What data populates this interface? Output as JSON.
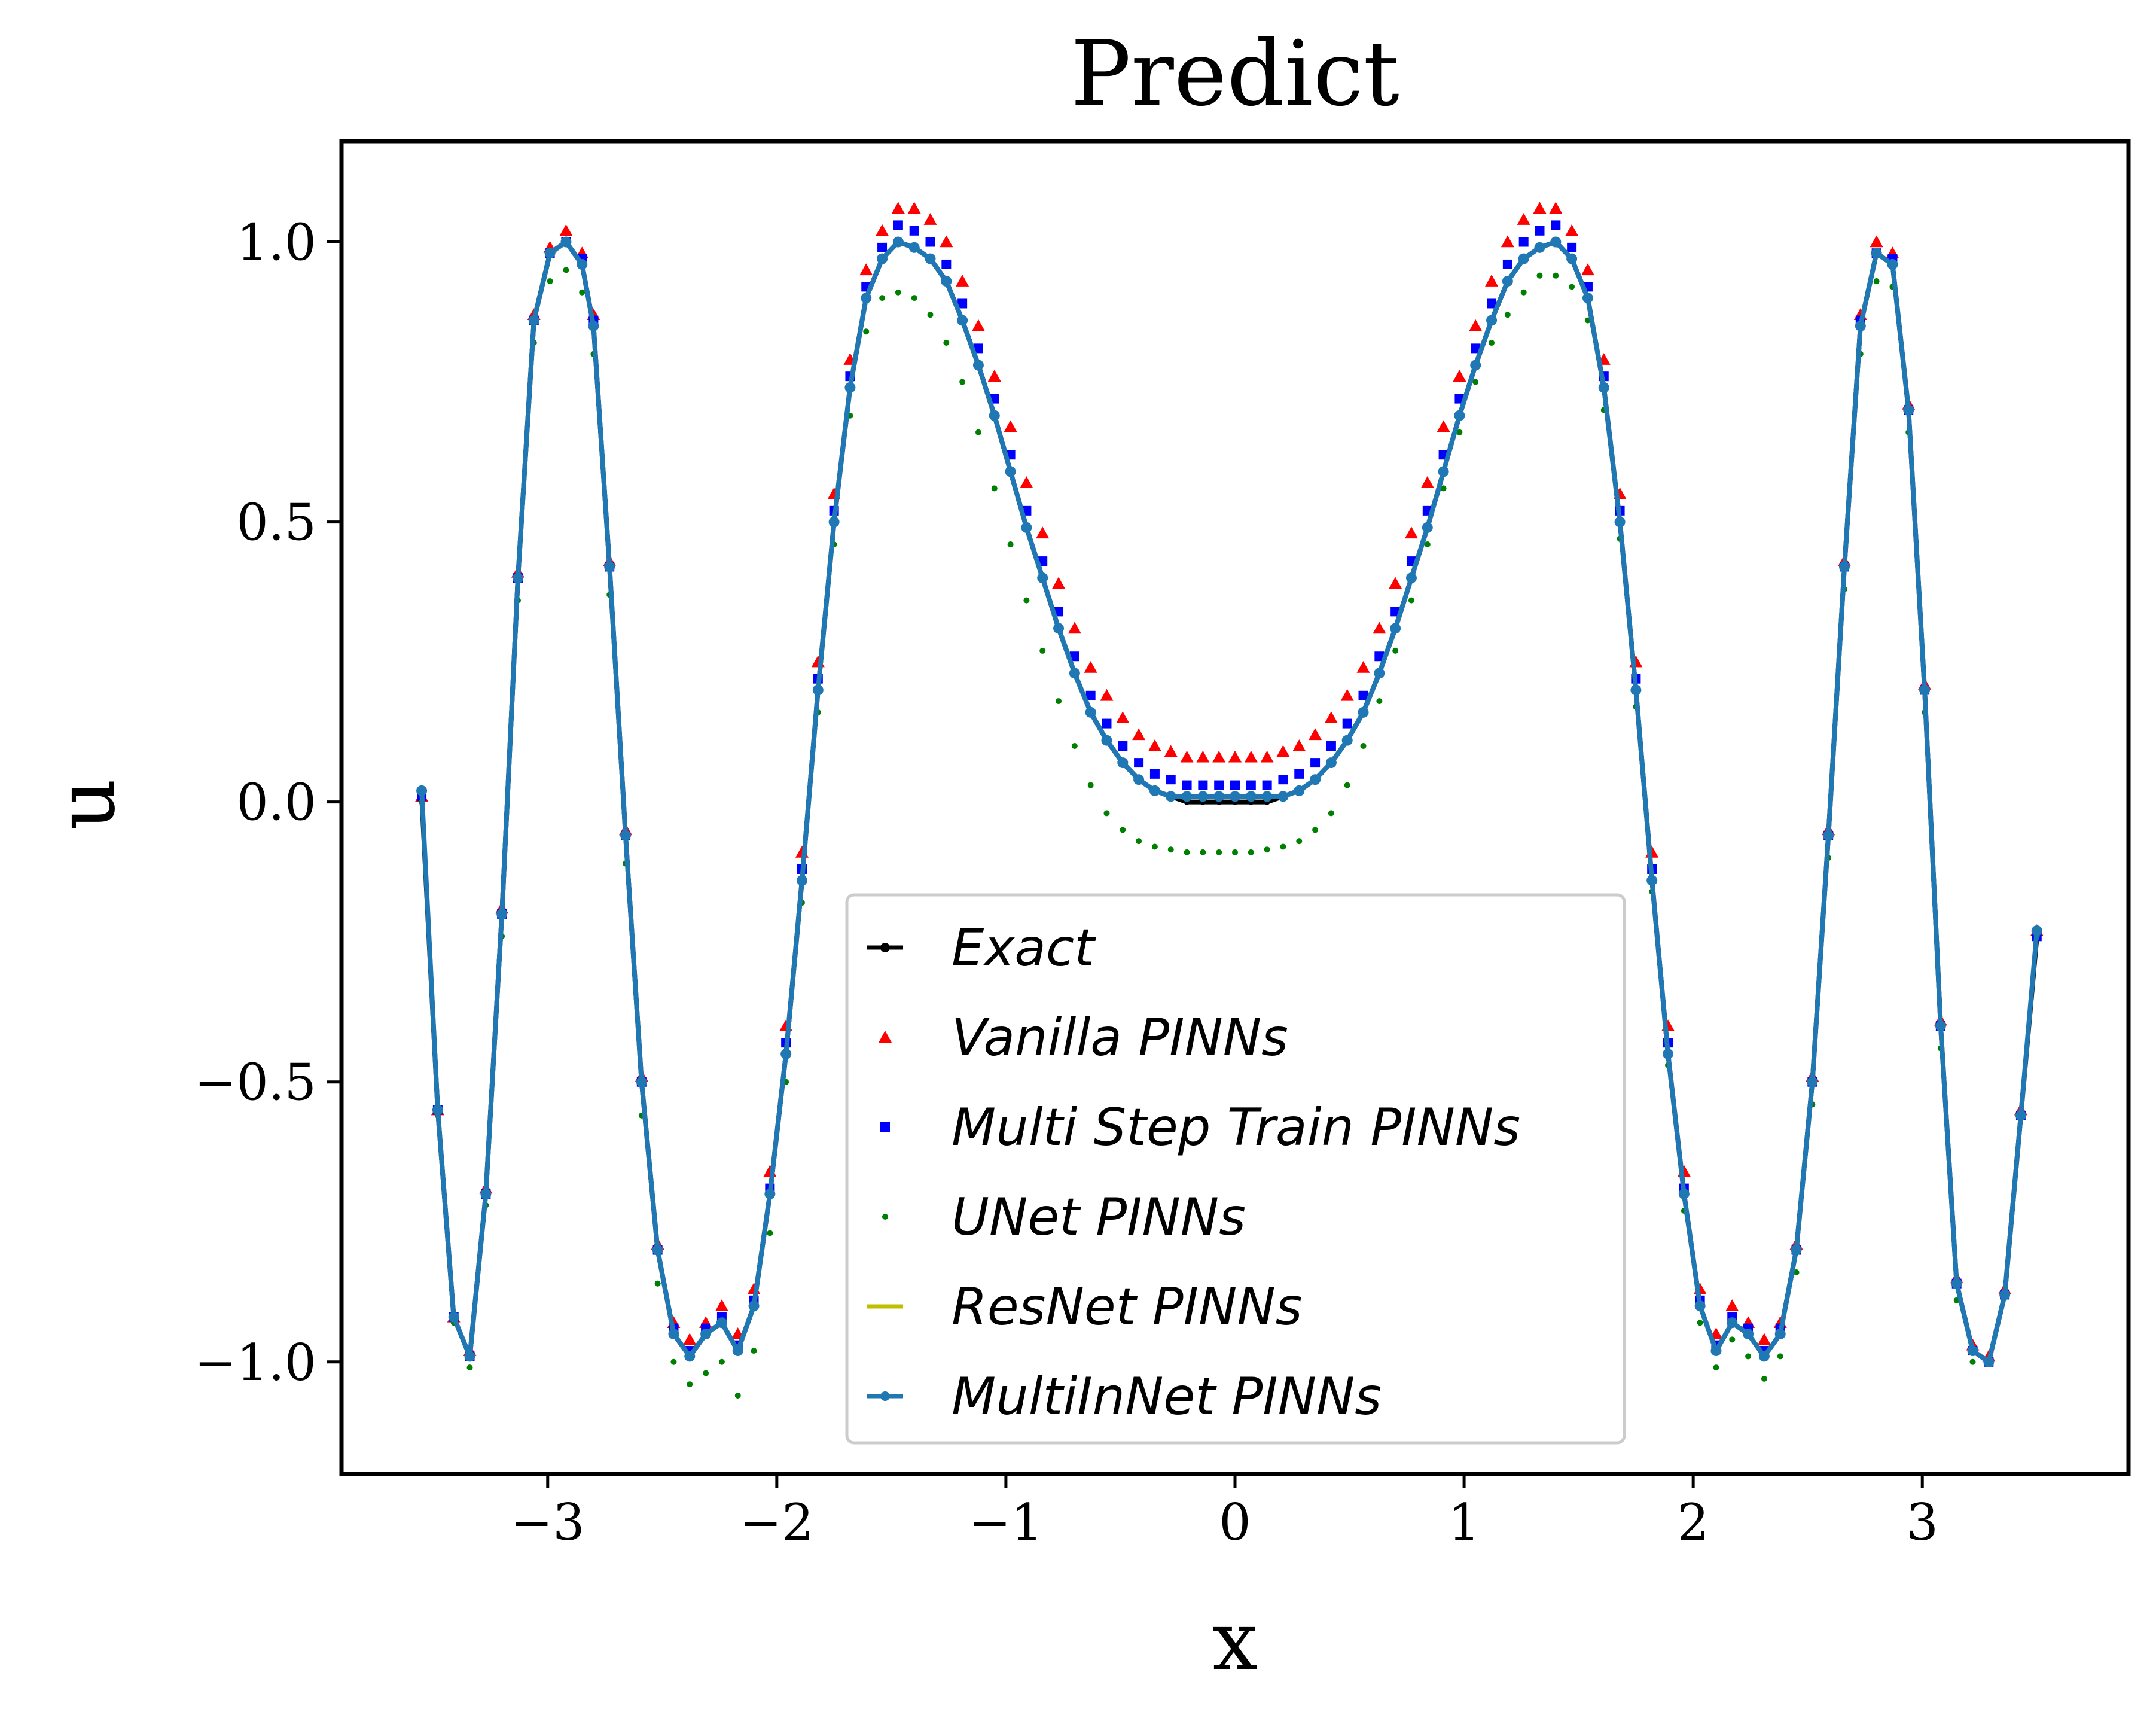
{
  "chart_data": {
    "type": "line",
    "title": "Predict",
    "xlabel": "x",
    "ylabel": "u",
    "xlim": [
      -3.9,
      3.9
    ],
    "ylim": [
      -1.2,
      1.18
    ],
    "x_ticks": [
      -3,
      -2,
      -1,
      0,
      1,
      2,
      3
    ],
    "x_tick_labels": [
      "−3",
      "−2",
      "−1",
      "0",
      "1",
      "2",
      "3"
    ],
    "y_ticks": [
      -1.0,
      -0.5,
      0.0,
      0.5,
      1.0
    ],
    "y_tick_labels": [
      "−1.0",
      "−0.5",
      "0.0",
      "0.5",
      "1.0"
    ],
    "grid": false,
    "legend_position": "lower-center",
    "x": [
      -3.55,
      -3.48,
      -3.41,
      -3.34,
      -3.27,
      -3.2,
      -3.13,
      -3.06,
      -2.99,
      -2.92,
      -2.85,
      -2.8,
      -2.73,
      -2.66,
      -2.59,
      -2.52,
      -2.45,
      -2.38,
      -2.31,
      -2.24,
      -2.17,
      -2.1,
      -2.03,
      -1.96,
      -1.89,
      -1.82,
      -1.75,
      -1.68,
      -1.61,
      -1.54,
      -1.47,
      -1.4,
      -1.33,
      -1.26,
      -1.19,
      -1.12,
      -1.05,
      -0.98,
      -0.91,
      -0.84,
      -0.77,
      -0.7,
      -0.63,
      -0.56,
      -0.49,
      -0.42,
      -0.35,
      -0.28,
      -0.21,
      -0.14,
      -0.07,
      0.0,
      0.07,
      0.14,
      0.21,
      0.28,
      0.35,
      0.42,
      0.49,
      0.56,
      0.63,
      0.7,
      0.77,
      0.84,
      0.91,
      0.98,
      1.05,
      1.12,
      1.19,
      1.26,
      1.33,
      1.4,
      1.47,
      1.54,
      1.61,
      1.68,
      1.75,
      1.82,
      1.89,
      1.96,
      2.03,
      2.1,
      2.17,
      2.24,
      2.31,
      2.38,
      2.45,
      2.52,
      2.59,
      2.66,
      2.73,
      2.8,
      2.87,
      2.94,
      3.01,
      3.08,
      3.15,
      3.22,
      3.29,
      3.36,
      3.43,
      3.5
    ],
    "series": [
      {
        "name": "Exact",
        "marker": "line-dot",
        "color": "#000000",
        "values": [
          0.01,
          -0.55,
          -0.92,
          -0.99,
          -0.7,
          -0.2,
          0.4,
          0.86,
          0.98,
          1.0,
          0.96,
          0.85,
          0.42,
          -0.06,
          -0.5,
          -0.8,
          -0.95,
          -0.99,
          -0.95,
          -0.93,
          -0.98,
          -0.9,
          -0.7,
          -0.45,
          -0.14,
          0.2,
          0.5,
          0.74,
          0.9,
          0.97,
          1.0,
          0.99,
          0.97,
          0.93,
          0.86,
          0.78,
          0.69,
          0.59,
          0.49,
          0.4,
          0.31,
          0.23,
          0.16,
          0.11,
          0.07,
          0.04,
          0.02,
          0.01,
          0.0,
          0.0,
          0.0,
          0.0,
          0.0,
          0.0,
          0.01,
          0.02,
          0.04,
          0.07,
          0.11,
          0.16,
          0.23,
          0.31,
          0.4,
          0.49,
          0.59,
          0.69,
          0.78,
          0.86,
          0.93,
          0.97,
          0.99,
          1.0,
          0.97,
          0.9,
          0.74,
          0.5,
          0.2,
          -0.14,
          -0.45,
          -0.7,
          -0.9,
          -0.98,
          -0.93,
          -0.95,
          -0.99,
          -0.95,
          -0.8,
          -0.5,
          -0.06,
          0.42,
          0.85,
          0.98,
          0.96,
          0.7,
          0.2,
          -0.4,
          -0.86,
          -0.98,
          -1.0,
          -0.88,
          -0.56,
          -0.24
        ]
      },
      {
        "name": "Vanilla PINNs",
        "marker": "triangle",
        "color": "#ff0000",
        "values": [
          0.01,
          -0.55,
          -0.92,
          -0.98,
          -0.69,
          -0.19,
          0.41,
          0.87,
          0.99,
          1.02,
          0.98,
          0.87,
          0.43,
          -0.05,
          -0.49,
          -0.79,
          -0.93,
          -0.96,
          -0.93,
          -0.9,
          -0.95,
          -0.87,
          -0.66,
          -0.4,
          -0.09,
          0.25,
          0.55,
          0.79,
          0.95,
          1.02,
          1.06,
          1.06,
          1.04,
          1.0,
          0.93,
          0.85,
          0.76,
          0.67,
          0.57,
          0.48,
          0.39,
          0.31,
          0.24,
          0.19,
          0.15,
          0.12,
          0.1,
          0.09,
          0.08,
          0.08,
          0.08,
          0.08,
          0.08,
          0.08,
          0.09,
          0.1,
          0.12,
          0.15,
          0.19,
          0.24,
          0.31,
          0.39,
          0.48,
          0.57,
          0.67,
          0.76,
          0.85,
          0.93,
          1.0,
          1.04,
          1.06,
          1.06,
          1.02,
          0.95,
          0.79,
          0.55,
          0.25,
          -0.09,
          -0.4,
          -0.66,
          -0.87,
          -0.95,
          -0.9,
          -0.93,
          -0.96,
          -0.93,
          -0.79,
          -0.49,
          -0.05,
          0.43,
          0.87,
          1.0,
          0.98,
          0.71,
          0.21,
          -0.39,
          -0.85,
          -0.97,
          -0.99,
          -0.87,
          -0.55,
          -0.23
        ]
      },
      {
        "name": "Multi Step Train PINNs",
        "marker": "square",
        "color": "#0000ff",
        "values": [
          0.01,
          -0.55,
          -0.92,
          -0.99,
          -0.7,
          -0.2,
          0.4,
          0.86,
          0.98,
          1.0,
          0.97,
          0.86,
          0.42,
          -0.06,
          -0.5,
          -0.8,
          -0.94,
          -0.98,
          -0.94,
          -0.92,
          -0.97,
          -0.89,
          -0.69,
          -0.43,
          -0.12,
          0.22,
          0.52,
          0.76,
          0.92,
          0.99,
          1.03,
          1.02,
          1.0,
          0.96,
          0.89,
          0.81,
          0.72,
          0.62,
          0.52,
          0.43,
          0.34,
          0.26,
          0.19,
          0.14,
          0.1,
          0.07,
          0.05,
          0.04,
          0.03,
          0.03,
          0.03,
          0.03,
          0.03,
          0.03,
          0.04,
          0.05,
          0.07,
          0.1,
          0.14,
          0.19,
          0.26,
          0.34,
          0.43,
          0.52,
          0.62,
          0.72,
          0.81,
          0.89,
          0.96,
          1.0,
          1.02,
          1.03,
          0.99,
          0.92,
          0.76,
          0.52,
          0.22,
          -0.12,
          -0.43,
          -0.69,
          -0.89,
          -0.97,
          -0.92,
          -0.94,
          -0.98,
          -0.94,
          -0.8,
          -0.5,
          -0.06,
          0.42,
          0.86,
          0.98,
          0.97,
          0.7,
          0.2,
          -0.4,
          -0.86,
          -0.98,
          -1.0,
          -0.88,
          -0.56,
          -0.24
        ]
      },
      {
        "name": "UNet PINNs",
        "marker": "dot",
        "color": "#008000",
        "values": [
          0.0,
          -0.56,
          -0.93,
          -1.01,
          -0.72,
          -0.24,
          0.36,
          0.82,
          0.93,
          0.95,
          0.91,
          0.8,
          0.37,
          -0.11,
          -0.56,
          -0.86,
          -1.0,
          -1.04,
          -1.02,
          -1.0,
          -1.06,
          -0.98,
          -0.77,
          -0.5,
          -0.18,
          0.16,
          0.46,
          0.69,
          0.84,
          0.9,
          0.91,
          0.9,
          0.87,
          0.82,
          0.75,
          0.66,
          0.56,
          0.46,
          0.36,
          0.27,
          0.18,
          0.1,
          0.03,
          -0.02,
          -0.05,
          -0.07,
          -0.08,
          -0.085,
          -0.09,
          -0.09,
          -0.09,
          -0.09,
          -0.09,
          -0.085,
          -0.08,
          -0.07,
          -0.05,
          -0.02,
          0.03,
          0.1,
          0.18,
          0.27,
          0.36,
          0.46,
          0.56,
          0.66,
          0.75,
          0.82,
          0.87,
          0.91,
          0.94,
          0.94,
          0.92,
          0.86,
          0.7,
          0.47,
          0.17,
          -0.16,
          -0.47,
          -0.73,
          -0.93,
          -1.01,
          -0.96,
          -0.99,
          -1.03,
          -0.99,
          -0.84,
          -0.54,
          -0.1,
          0.38,
          0.8,
          0.93,
          0.92,
          0.66,
          0.16,
          -0.44,
          -0.89,
          -1.0,
          -1.0,
          -0.88,
          -0.56,
          -0.24
        ]
      },
      {
        "name": "ResNet PINNs",
        "marker": "line",
        "color": "#bfbf00",
        "values": [
          0.01,
          -0.55,
          -0.92,
          -0.99,
          -0.7,
          -0.2,
          0.4,
          0.86,
          0.98,
          1.0,
          0.96,
          0.85,
          0.42,
          -0.06,
          -0.5,
          -0.8,
          -0.95,
          -0.99,
          -0.95,
          -0.93,
          -0.98,
          -0.9,
          -0.7,
          -0.45,
          -0.14,
          0.2,
          0.5,
          0.74,
          0.9,
          0.97,
          1.0,
          0.99,
          0.97,
          0.93,
          0.86,
          0.78,
          0.69,
          0.59,
          0.49,
          0.4,
          0.31,
          0.23,
          0.16,
          0.11,
          0.07,
          0.04,
          0.02,
          0.01,
          0.0,
          0.0,
          0.0,
          0.0,
          0.0,
          0.0,
          0.01,
          0.02,
          0.04,
          0.07,
          0.11,
          0.16,
          0.23,
          0.31,
          0.4,
          0.49,
          0.59,
          0.69,
          0.78,
          0.86,
          0.93,
          0.97,
          0.99,
          1.0,
          0.97,
          0.9,
          0.74,
          0.5,
          0.2,
          -0.14,
          -0.45,
          -0.7,
          -0.9,
          -0.98,
          -0.93,
          -0.95,
          -0.99,
          -0.95,
          -0.8,
          -0.5,
          -0.06,
          0.42,
          0.85,
          0.98,
          0.96,
          0.7,
          0.2,
          -0.4,
          -0.86,
          -0.98,
          -1.0,
          -0.88,
          -0.56,
          -0.24
        ]
      },
      {
        "name": "MultiInNet PINNs",
        "marker": "line-dot",
        "color": "#1f77b4",
        "values": [
          0.02,
          -0.55,
          -0.92,
          -0.99,
          -0.7,
          -0.2,
          0.4,
          0.86,
          0.98,
          1.0,
          0.96,
          0.85,
          0.42,
          -0.06,
          -0.5,
          -0.8,
          -0.95,
          -0.99,
          -0.95,
          -0.93,
          -0.98,
          -0.9,
          -0.7,
          -0.45,
          -0.14,
          0.2,
          0.5,
          0.74,
          0.9,
          0.97,
          1.0,
          0.99,
          0.97,
          0.93,
          0.86,
          0.78,
          0.69,
          0.59,
          0.49,
          0.4,
          0.31,
          0.23,
          0.16,
          0.11,
          0.07,
          0.04,
          0.02,
          0.01,
          0.01,
          0.01,
          0.01,
          0.01,
          0.01,
          0.01,
          0.01,
          0.02,
          0.04,
          0.07,
          0.11,
          0.16,
          0.23,
          0.31,
          0.4,
          0.49,
          0.59,
          0.69,
          0.78,
          0.86,
          0.93,
          0.97,
          0.99,
          1.0,
          0.97,
          0.9,
          0.74,
          0.5,
          0.2,
          -0.14,
          -0.45,
          -0.7,
          -0.9,
          -0.98,
          -0.93,
          -0.95,
          -0.99,
          -0.95,
          -0.8,
          -0.5,
          -0.06,
          0.42,
          0.85,
          0.98,
          0.96,
          0.7,
          0.2,
          -0.4,
          -0.86,
          -0.98,
          -1.0,
          -0.88,
          -0.56,
          -0.23
        ]
      }
    ]
  }
}
